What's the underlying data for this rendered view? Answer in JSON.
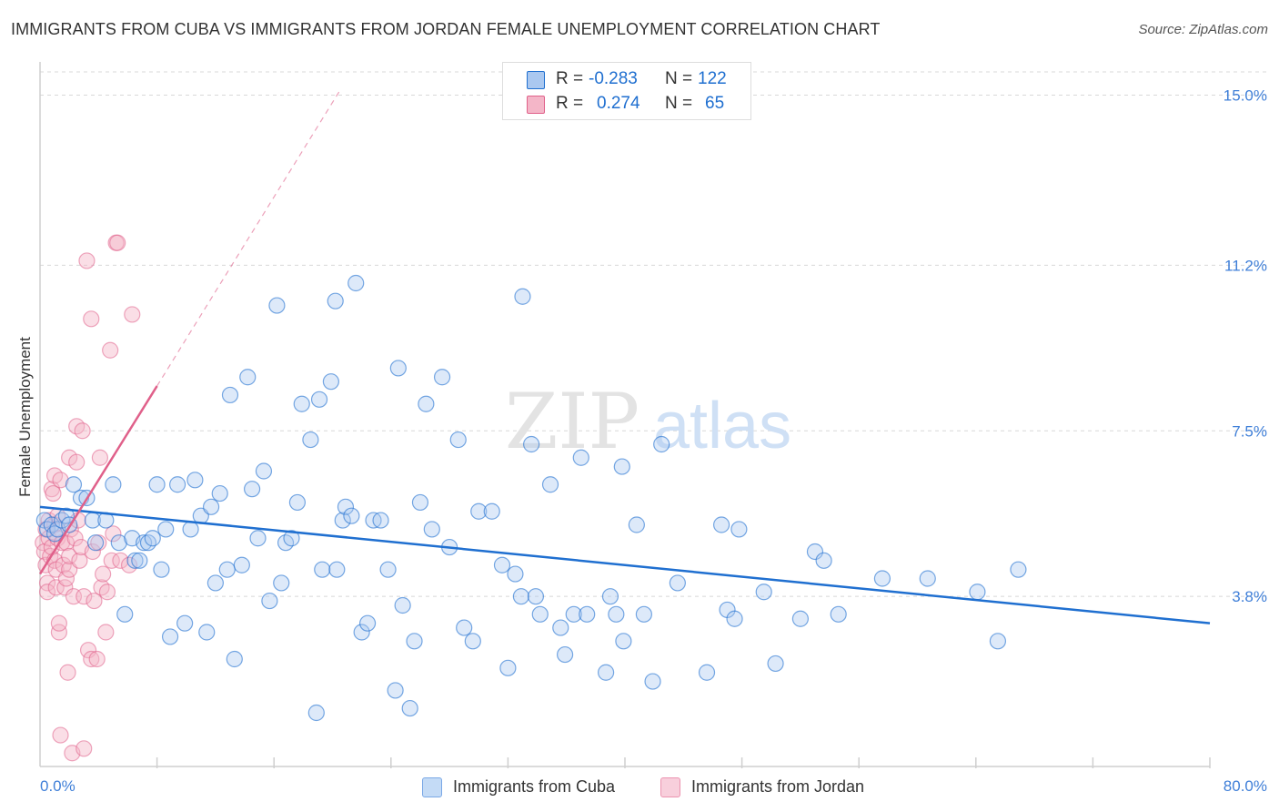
{
  "title": "IMMIGRANTS FROM CUBA VS IMMIGRANTS FROM JORDAN FEMALE UNEMPLOYMENT CORRELATION CHART",
  "source": "Source: ZipAtlas.com",
  "watermark": {
    "zip": "ZIP",
    "atlas": "atlas"
  },
  "colors": {
    "cuba": "#1f6fd0",
    "cuba_fill": "#aac8f0",
    "jordan": "#e0608a",
    "jordan_fill": "#f4b6c8",
    "grid": "#d8d8d8",
    "tick_label": "#3f7fd8"
  },
  "stats": {
    "r_label": "R =",
    "n_label": "N =",
    "cuba": {
      "r": "-0.283",
      "n": "122"
    },
    "jordan": {
      "r": "0.274",
      "n": "65"
    }
  },
  "chart_data": {
    "type": "scatter",
    "title": "IMMIGRANTS FROM CUBA VS IMMIGRANTS FROM JORDAN FEMALE UNEMPLOYMENT CORRELATION CHART",
    "xlabel": "",
    "ylabel": "Female Unemployment",
    "xlim": [
      0,
      80
    ],
    "ylim": [
      0,
      15.6
    ],
    "x_tick_labels": [
      "0.0%",
      "80.0%"
    ],
    "y_ticks": [
      3.8,
      7.5,
      11.2,
      15.0
    ],
    "y_tick_labels": [
      "3.8%",
      "7.5%",
      "11.2%",
      "15.0%"
    ],
    "grid": "horizontal dashed",
    "legend_position": "bottom-center",
    "series": [
      {
        "name": "Immigrants from Cuba",
        "trend": {
          "x": [
            0,
            80
          ],
          "y": [
            5.8,
            3.2
          ]
        },
        "points": [
          [
            0.3,
            5.5
          ],
          [
            0.5,
            5.3
          ],
          [
            0.8,
            5.4
          ],
          [
            1.0,
            5.2
          ],
          [
            1.2,
            5.3
          ],
          [
            1.5,
            5.5
          ],
          [
            1.8,
            5.6
          ],
          [
            2.0,
            5.4
          ],
          [
            2.3,
            6.3
          ],
          [
            2.8,
            6.0
          ],
          [
            3.2,
            6.0
          ],
          [
            3.6,
            5.5
          ],
          [
            3.8,
            5.0
          ],
          [
            4.5,
            5.5
          ],
          [
            5.0,
            6.3
          ],
          [
            5.4,
            5.0
          ],
          [
            5.8,
            3.4
          ],
          [
            6.3,
            5.1
          ],
          [
            6.5,
            4.6
          ],
          [
            6.8,
            4.6
          ],
          [
            7.1,
            5.0
          ],
          [
            7.4,
            5.0
          ],
          [
            7.7,
            5.1
          ],
          [
            8.0,
            6.3
          ],
          [
            8.3,
            4.4
          ],
          [
            8.6,
            5.3
          ],
          [
            8.9,
            2.9
          ],
          [
            9.4,
            6.3
          ],
          [
            9.9,
            3.2
          ],
          [
            10.3,
            5.3
          ],
          [
            10.6,
            6.4
          ],
          [
            11.0,
            5.6
          ],
          [
            11.4,
            3.0
          ],
          [
            11.7,
            5.8
          ],
          [
            12.0,
            4.1
          ],
          [
            12.3,
            6.1
          ],
          [
            12.8,
            4.4
          ],
          [
            13.0,
            8.3
          ],
          [
            13.3,
            2.4
          ],
          [
            13.8,
            4.5
          ],
          [
            14.2,
            8.7
          ],
          [
            14.5,
            6.2
          ],
          [
            14.9,
            5.1
          ],
          [
            15.3,
            6.6
          ],
          [
            15.7,
            3.7
          ],
          [
            16.2,
            10.3
          ],
          [
            16.5,
            4.1
          ],
          [
            16.8,
            5.0
          ],
          [
            17.2,
            5.1
          ],
          [
            17.6,
            5.9
          ],
          [
            17.9,
            8.1
          ],
          [
            18.5,
            7.3
          ],
          [
            18.9,
            1.2
          ],
          [
            19.1,
            8.2
          ],
          [
            19.3,
            4.4
          ],
          [
            19.9,
            8.6
          ],
          [
            20.2,
            10.4
          ],
          [
            20.3,
            4.4
          ],
          [
            20.7,
            5.5
          ],
          [
            20.9,
            5.8
          ],
          [
            21.3,
            5.6
          ],
          [
            21.6,
            10.8
          ],
          [
            22.0,
            3.0
          ],
          [
            22.4,
            3.2
          ],
          [
            22.8,
            5.5
          ],
          [
            23.3,
            5.5
          ],
          [
            23.8,
            4.4
          ],
          [
            24.3,
            1.7
          ],
          [
            24.5,
            8.9
          ],
          [
            24.8,
            3.6
          ],
          [
            25.3,
            1.3
          ],
          [
            25.6,
            2.8
          ],
          [
            26.0,
            5.9
          ],
          [
            26.4,
            8.1
          ],
          [
            26.8,
            5.3
          ],
          [
            27.5,
            8.7
          ],
          [
            28.0,
            4.9
          ],
          [
            28.6,
            7.3
          ],
          [
            29.0,
            3.1
          ],
          [
            29.6,
            2.8
          ],
          [
            30.0,
            5.7
          ],
          [
            30.9,
            5.7
          ],
          [
            31.6,
            4.5
          ],
          [
            32.0,
            2.2
          ],
          [
            32.5,
            4.3
          ],
          [
            32.9,
            3.8
          ],
          [
            33.0,
            10.5
          ],
          [
            33.6,
            7.2
          ],
          [
            33.9,
            3.8
          ],
          [
            34.2,
            3.4
          ],
          [
            34.9,
            6.3
          ],
          [
            35.6,
            3.1
          ],
          [
            35.9,
            2.5
          ],
          [
            36.5,
            3.4
          ],
          [
            37.0,
            6.9
          ],
          [
            37.4,
            3.4
          ],
          [
            38.7,
            2.1
          ],
          [
            39.0,
            3.8
          ],
          [
            39.4,
            3.4
          ],
          [
            39.8,
            6.7
          ],
          [
            39.9,
            2.8
          ],
          [
            40.8,
            5.4
          ],
          [
            41.3,
            3.4
          ],
          [
            41.9,
            1.9
          ],
          [
            42.5,
            7.2
          ],
          [
            43.6,
            4.1
          ],
          [
            45.6,
            2.1
          ],
          [
            46.6,
            5.4
          ],
          [
            47.0,
            3.5
          ],
          [
            47.5,
            3.3
          ],
          [
            47.8,
            5.3
          ],
          [
            49.5,
            3.9
          ],
          [
            50.3,
            2.3
          ],
          [
            52.0,
            3.3
          ],
          [
            53.0,
            4.8
          ],
          [
            53.6,
            4.6
          ],
          [
            54.6,
            3.4
          ],
          [
            57.6,
            4.2
          ],
          [
            60.7,
            4.2
          ],
          [
            64.1,
            3.9
          ],
          [
            65.5,
            2.8
          ],
          [
            66.9,
            4.4
          ]
        ]
      },
      {
        "name": "Immigrants from Jordan",
        "trend": {
          "x": [
            0,
            8
          ],
          "y": [
            4.3,
            8.5
          ]
        },
        "trend_ext": {
          "x": [
            8,
            20.5
          ],
          "y": [
            8.5,
            15.1
          ]
        },
        "points": [
          [
            0.2,
            5.0
          ],
          [
            0.3,
            4.8
          ],
          [
            0.4,
            4.5
          ],
          [
            0.4,
            5.3
          ],
          [
            0.5,
            4.1
          ],
          [
            0.5,
            3.9
          ],
          [
            0.6,
            5.5
          ],
          [
            0.6,
            5.1
          ],
          [
            0.7,
            4.7
          ],
          [
            0.8,
            4.9
          ],
          [
            0.8,
            6.2
          ],
          [
            0.9,
            6.1
          ],
          [
            1.0,
            5.4
          ],
          [
            1.0,
            6.5
          ],
          [
            1.0,
            4.6
          ],
          [
            1.1,
            4.0
          ],
          [
            1.1,
            4.4
          ],
          [
            1.2,
            5.1
          ],
          [
            1.2,
            5.6
          ],
          [
            1.3,
            3.0
          ],
          [
            1.3,
            3.2
          ],
          [
            1.4,
            6.4
          ],
          [
            1.4,
            0.7
          ],
          [
            1.5,
            5.0
          ],
          [
            1.6,
            4.5
          ],
          [
            1.7,
            4.0
          ],
          [
            1.8,
            5.0
          ],
          [
            1.8,
            4.2
          ],
          [
            1.9,
            2.1
          ],
          [
            2.0,
            6.9
          ],
          [
            2.0,
            4.4
          ],
          [
            2.0,
            4.7
          ],
          [
            2.1,
            5.3
          ],
          [
            2.2,
            0.3
          ],
          [
            2.3,
            3.8
          ],
          [
            2.4,
            5.1
          ],
          [
            2.5,
            7.6
          ],
          [
            2.5,
            6.8
          ],
          [
            2.6,
            5.5
          ],
          [
            2.7,
            4.6
          ],
          [
            2.8,
            4.9
          ],
          [
            2.9,
            7.5
          ],
          [
            3.0,
            3.8
          ],
          [
            3.0,
            0.4
          ],
          [
            3.2,
            11.3
          ],
          [
            3.3,
            2.6
          ],
          [
            3.5,
            2.4
          ],
          [
            3.5,
            10.0
          ],
          [
            3.6,
            4.8
          ],
          [
            3.7,
            3.7
          ],
          [
            3.9,
            2.4
          ],
          [
            4.0,
            5.0
          ],
          [
            4.1,
            6.9
          ],
          [
            4.2,
            4.0
          ],
          [
            4.3,
            4.3
          ],
          [
            4.5,
            3.0
          ],
          [
            4.6,
            3.9
          ],
          [
            4.8,
            9.3
          ],
          [
            4.9,
            4.6
          ],
          [
            5.0,
            5.2
          ],
          [
            5.2,
            11.7
          ],
          [
            5.3,
            11.7
          ],
          [
            5.5,
            4.6
          ],
          [
            6.1,
            4.5
          ],
          [
            6.3,
            10.1
          ]
        ]
      }
    ]
  },
  "legend": {
    "cuba": "Immigrants from Cuba",
    "jordan": "Immigrants from Jordan"
  }
}
